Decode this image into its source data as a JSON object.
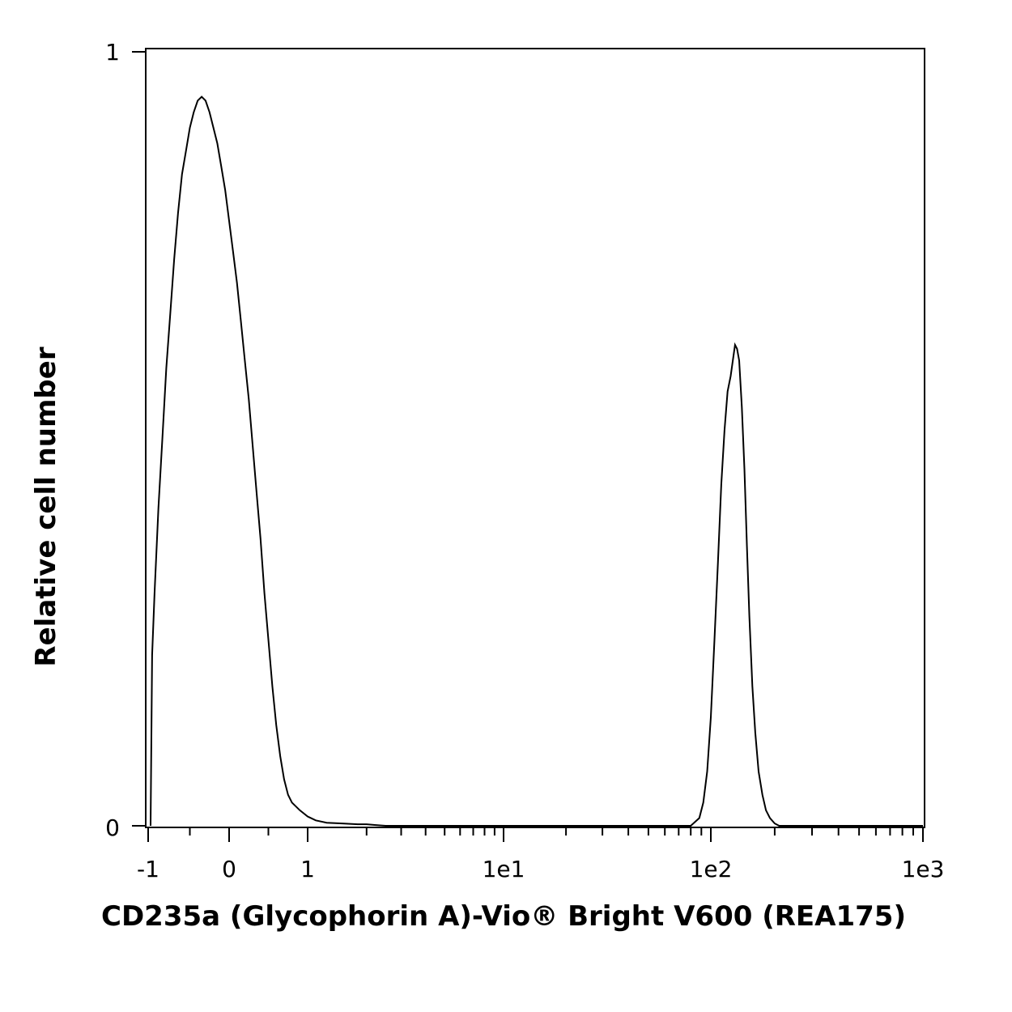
{
  "chart_data": {
    "type": "area",
    "title": "",
    "xlabel": "CD235a (Glycophorin A)-Vio® Bright V600 (REA175)",
    "ylabel": "Relative cell number",
    "x_scale": "biexponential",
    "xlim": [
      -1,
      1000
    ],
    "ylim": [
      0,
      1
    ],
    "x_tick_labels": [
      "-1",
      "0",
      "1",
      "1e1",
      "1e2",
      "1e3"
    ],
    "y_tick_labels": [
      "0",
      "1"
    ],
    "grid": false,
    "legend": "none",
    "line_color": "#000000",
    "fill_color": "none",
    "series": [
      {
        "points": [
          [
            -1.0,
            0.0
          ],
          [
            -0.98,
            0.22
          ],
          [
            -0.95,
            0.3
          ],
          [
            -0.9,
            0.41
          ],
          [
            -0.85,
            0.5
          ],
          [
            -0.8,
            0.59
          ],
          [
            -0.75,
            0.66
          ],
          [
            -0.7,
            0.73
          ],
          [
            -0.65,
            0.79
          ],
          [
            -0.6,
            0.84
          ],
          [
            -0.55,
            0.87
          ],
          [
            -0.5,
            0.9
          ],
          [
            -0.45,
            0.92
          ],
          [
            -0.4,
            0.935
          ],
          [
            -0.35,
            0.94
          ],
          [
            -0.3,
            0.935
          ],
          [
            -0.25,
            0.92
          ],
          [
            -0.2,
            0.9
          ],
          [
            -0.15,
            0.88
          ],
          [
            -0.1,
            0.85
          ],
          [
            -0.05,
            0.82
          ],
          [
            0.0,
            0.78
          ],
          [
            0.05,
            0.74
          ],
          [
            0.1,
            0.7
          ],
          [
            0.15,
            0.65
          ],
          [
            0.2,
            0.6
          ],
          [
            0.25,
            0.55
          ],
          [
            0.3,
            0.49
          ],
          [
            0.35,
            0.43
          ],
          [
            0.4,
            0.37
          ],
          [
            0.45,
            0.3
          ],
          [
            0.5,
            0.24
          ],
          [
            0.55,
            0.18
          ],
          [
            0.6,
            0.13
          ],
          [
            0.65,
            0.09
          ],
          [
            0.7,
            0.06
          ],
          [
            0.75,
            0.04
          ],
          [
            0.8,
            0.03
          ],
          [
            0.9,
            0.02
          ],
          [
            1.0,
            0.012
          ],
          [
            1.1,
            0.007
          ],
          [
            1.25,
            0.004
          ],
          [
            1.5,
            0.003
          ],
          [
            1.8,
            0.002
          ],
          [
            2.0,
            0.002
          ],
          [
            2.2,
            0.001
          ],
          [
            2.5,
            0.0
          ],
          [
            10,
            0.0
          ],
          [
            50,
            0.0
          ],
          [
            80,
            0.0
          ],
          [
            88,
            0.01
          ],
          [
            92,
            0.03
          ],
          [
            96,
            0.07
          ],
          [
            100,
            0.14
          ],
          [
            104,
            0.24
          ],
          [
            108,
            0.34
          ],
          [
            112,
            0.44
          ],
          [
            116,
            0.51
          ],
          [
            120,
            0.56
          ],
          [
            124,
            0.58
          ],
          [
            127,
            0.6
          ],
          [
            130,
            0.62
          ],
          [
            133,
            0.615
          ],
          [
            136,
            0.6
          ],
          [
            140,
            0.54
          ],
          [
            144,
            0.46
          ],
          [
            148,
            0.36
          ],
          [
            152,
            0.27
          ],
          [
            157,
            0.18
          ],
          [
            162,
            0.12
          ],
          [
            168,
            0.07
          ],
          [
            175,
            0.04
          ],
          [
            182,
            0.02
          ],
          [
            190,
            0.01
          ],
          [
            200,
            0.003
          ],
          [
            210,
            0.0
          ],
          [
            1000,
            0.0
          ]
        ]
      }
    ]
  }
}
